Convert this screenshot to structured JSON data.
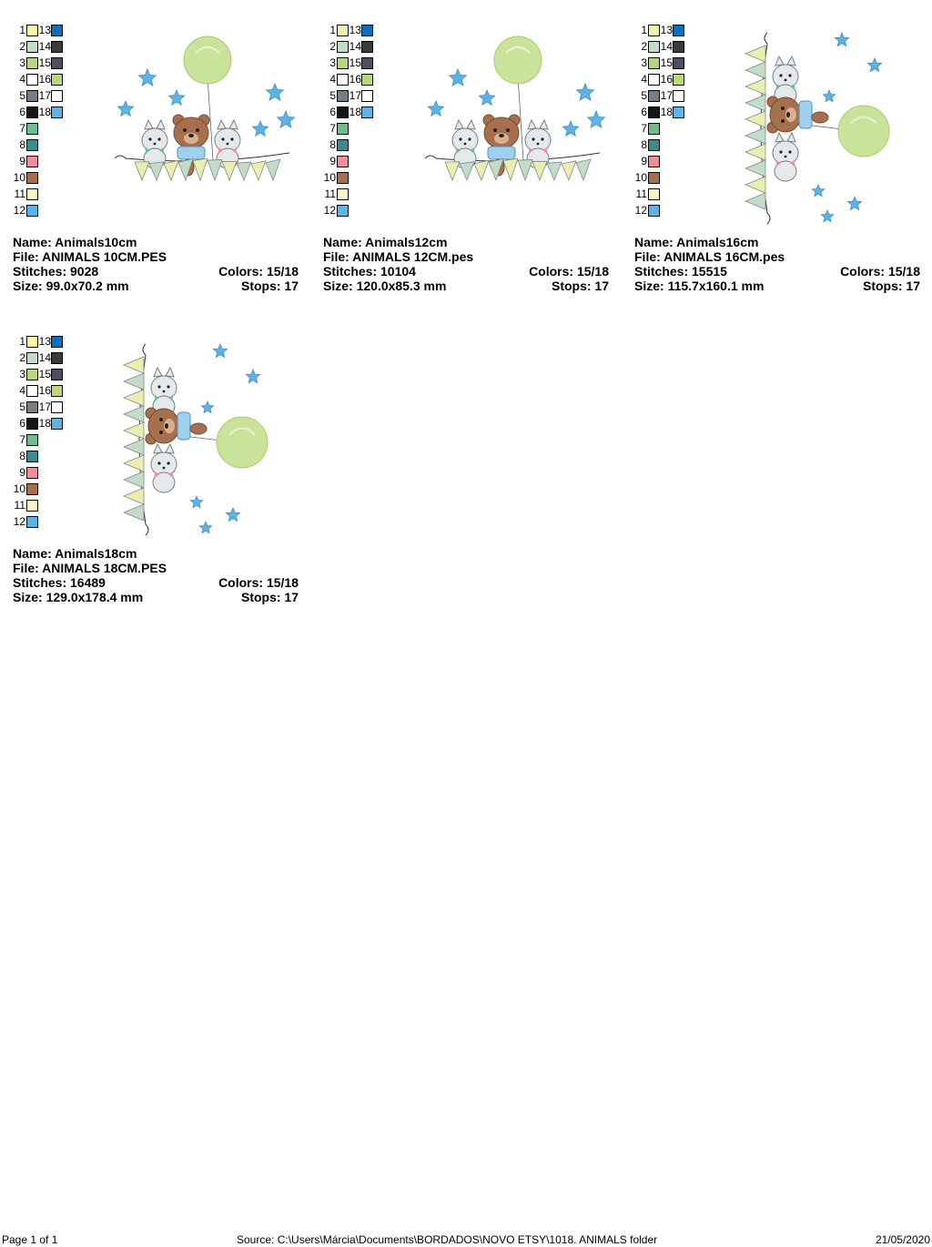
{
  "palette": [
    {
      "n": "1",
      "c": "#f7f6a5"
    },
    {
      "n": "2",
      "c": "#c2ddc7"
    },
    {
      "n": "3",
      "c": "#b7d480"
    },
    {
      "n": "4",
      "c": "#ffffff"
    },
    {
      "n": "5",
      "c": "#767e86"
    },
    {
      "n": "6",
      "c": "#151515"
    },
    {
      "n": "7",
      "c": "#6fbd8c"
    },
    {
      "n": "8",
      "c": "#3c8a8d"
    },
    {
      "n": "9",
      "c": "#f08e97"
    },
    {
      "n": "10",
      "c": "#a66f4d"
    },
    {
      "n": "11",
      "c": "#fbf6c2"
    },
    {
      "n": "12",
      "c": "#5db3e8"
    },
    {
      "n": "13",
      "c": "#0b6fc0"
    },
    {
      "n": "14",
      "c": "#3b3b3b"
    },
    {
      "n": "15",
      "c": "#4e4e60"
    },
    {
      "n": "16",
      "c": "#b9d77b"
    },
    {
      "n": "17",
      "c": "#ffffff"
    },
    {
      "n": "18",
      "c": "#5db3e8"
    }
  ],
  "designs": [
    {
      "name": "Name: Animals10cm",
      "file": "File: ANIMALS 10CM.PES",
      "stitches": "Stitches: 9028",
      "colors": "Colors: 15/18",
      "size": "Size: 99.0x70.2 mm",
      "stops": "Stops: 17",
      "orientation": "horizontal"
    },
    {
      "name": "Name: Animals12cm",
      "file": "File: ANIMALS 12CM.pes",
      "stitches": "Stitches: 10104",
      "colors": "Colors: 15/18",
      "size": "Size: 120.0x85.3 mm",
      "stops": "Stops: 17",
      "orientation": "horizontal"
    },
    {
      "name": "Name: Animals16cm",
      "file": "File: ANIMALS 16CM.pes",
      "stitches": "Stitches: 15515",
      "colors": "Colors: 15/18",
      "size": "Size: 115.7x160.1 mm",
      "stops": "Stops: 17",
      "orientation": "vertical"
    },
    {
      "name": "Name: Animals18cm",
      "file": "File: ANIMALS 18CM.PES",
      "stitches": "Stitches: 16489",
      "colors": "Colors: 15/18",
      "size": "Size: 129.0x178.4 mm",
      "stops": "Stops: 17",
      "orientation": "vertical"
    }
  ],
  "footer": {
    "page": "Page 1 of 1",
    "source": "Source: C:\\Users\\Márcia\\Documents\\BORDADOS\\NOVO ETSY\\1018. ANIMALS folder",
    "date": "21/05/2020"
  },
  "colors": {
    "star": "#5db3e8",
    "balloon": "#c9e39a",
    "bear": "#a66f4d",
    "bear_dark": "#7a4a2e",
    "cat": "#e6e9ec",
    "cat_line": "#767e86",
    "flag_a": "#e8efb0",
    "flag_b": "#c2ddc7",
    "shirt": "#9fd0ee",
    "bow_green": "#6fbd8c",
    "bow_pink": "#f08e97"
  }
}
